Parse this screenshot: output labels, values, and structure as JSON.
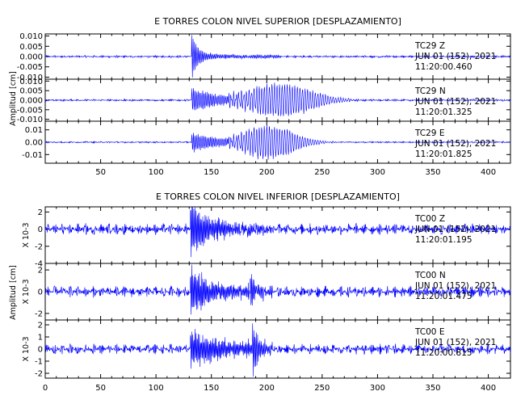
{
  "chart_data": [
    {
      "type": "line",
      "title": "E TORRES COLON NIVEL SUPERIOR [DESPLAZAMIENTO]",
      "ylabel": "Amplitud [cm]",
      "xlim": [
        0,
        420
      ],
      "x_ticks": [
        "50",
        "100",
        "150",
        "200",
        "250",
        "300",
        "350",
        "400"
      ],
      "multiplier": "",
      "panels": [
        {
          "station": "TC29",
          "component": "Z",
          "date": "JUN 01 (152), 2021",
          "time": "11:20:00.460",
          "ylim": [
            -0.011,
            0.011
          ],
          "y_ticks": [
            "0.010",
            "0.005",
            "0.000",
            "-0.005",
            "-0.010"
          ],
          "baseline": 0.0,
          "noise_amp": 0.0006,
          "events": [
            {
              "t0": 132,
              "peak": 0.011,
              "decay": 6,
              "period": 1.2,
              "dur": 80,
              "floor": 0.0008
            }
          ]
        },
        {
          "station": "TC29",
          "component": "N",
          "date": "JUN 01 (152), 2021",
          "time": "11:20:01.325",
          "ylim": [
            -0.011,
            0.011
          ],
          "y_ticks": [
            "0.010",
            "0.005",
            "0.000",
            "-0.005",
            "-0.010"
          ],
          "baseline": 0.0,
          "noise_amp": 0.0006,
          "events": [
            {
              "t0": 132,
              "peak": 0.006,
              "decay": 25,
              "period": 1.4,
              "dur": 60,
              "floor": 0.001
            },
            {
              "t0": 165,
              "peak": 0.0095,
              "center": 212,
              "width": 38,
              "period": 2.3,
              "dur": 150
            }
          ]
        },
        {
          "station": "TC29",
          "component": "E",
          "date": "JUN 01 (152), 2021",
          "time": "11:20:01.825",
          "ylim": [
            -0.017,
            0.017
          ],
          "y_ticks": [
            "0.01",
            "0.00",
            "-0.01"
          ],
          "baseline": 0.0,
          "noise_amp": 0.0007,
          "events": [
            {
              "t0": 132,
              "peak": 0.007,
              "decay": 25,
              "period": 1.4,
              "dur": 60,
              "floor": 0.0015
            },
            {
              "t0": 165,
              "peak": 0.0145,
              "center": 202,
              "width": 30,
              "period": 2.3,
              "dur": 120
            }
          ]
        }
      ]
    },
    {
      "type": "line",
      "title": "E TORRES COLON NIVEL INFERIOR [DESPLAZAMIENTO]",
      "ylabel": "Amplitud [cm]",
      "xlim": [
        0,
        420
      ],
      "x_ticks": [
        "0",
        "50",
        "100",
        "150",
        "200",
        "250",
        "300",
        "350",
        "400"
      ],
      "multiplier": "X 10-3",
      "panels": [
        {
          "station": "TC00",
          "component": "Z",
          "date": "JUN 01 (152), 2021",
          "time": "11:20:01.195",
          "ylim": [
            -4,
            2.6
          ],
          "y_ticks": [
            "2",
            "0",
            "-2",
            "-4"
          ],
          "baseline": 0.0,
          "noise_amp": 0.7,
          "events": [
            {
              "t0": 131,
              "peak": 3.5,
              "decay": 14,
              "period": 1.0,
              "dur": 70,
              "floor": 0.5
            }
          ]
        },
        {
          "station": "TC00",
          "component": "N",
          "date": "JUN 01 (152), 2021",
          "time": "11:20:01.475",
          "ylim": [
            -2.6,
            2.6
          ],
          "y_ticks": [
            "2",
            "0",
            "-2"
          ],
          "baseline": 0.0,
          "noise_amp": 0.55,
          "events": [
            {
              "t0": 131,
              "peak": 2.3,
              "decay": 14,
              "period": 1.0,
              "dur": 60,
              "floor": 0.4
            },
            {
              "t0": 185,
              "peak": 1.6,
              "decay": 6,
              "period": 1.1,
              "dur": 20,
              "floor": 0.2
            }
          ]
        },
        {
          "station": "TC00",
          "component": "E",
          "date": "JUN 01 (152), 2021",
          "time": "11:20:00.815",
          "ylim": [
            -2.4,
            2.4
          ],
          "y_ticks": [
            "2",
            "1",
            "0",
            "-1",
            "-2"
          ],
          "baseline": 0.0,
          "noise_amp": 0.45,
          "events": [
            {
              "t0": 131,
              "peak": 1.5,
              "decay": 20,
              "period": 1.0,
              "dur": 60,
              "floor": 0.4
            },
            {
              "t0": 187,
              "peak": 2.1,
              "decay": 6,
              "period": 1.1,
              "dur": 20,
              "floor": 0.2
            }
          ]
        }
      ]
    }
  ]
}
